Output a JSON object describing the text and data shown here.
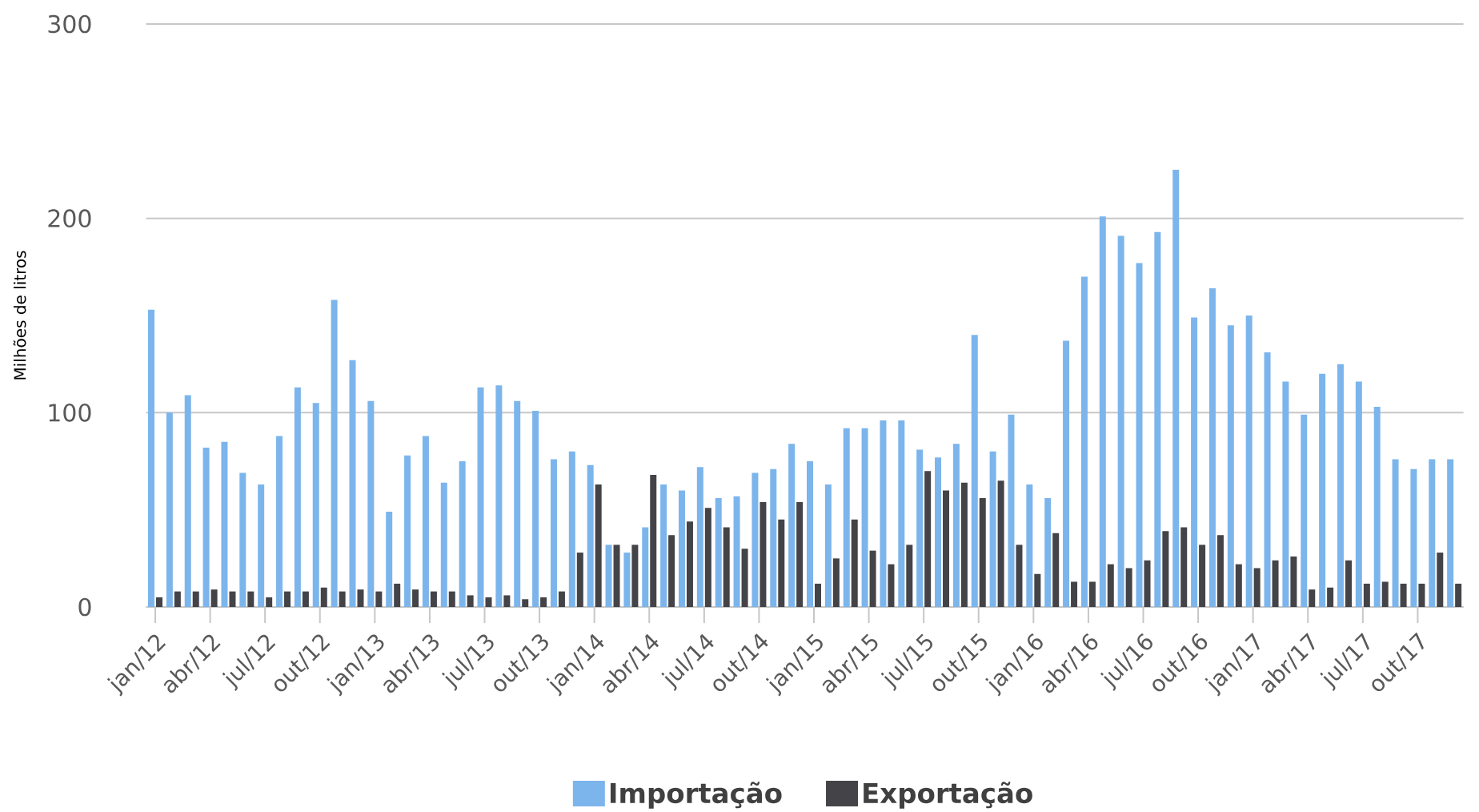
{
  "chart_data": {
    "type": "bar",
    "ylabel": "Milhões de litros",
    "categories": [
      "jan/12",
      null,
      null,
      "abr/12",
      null,
      null,
      "jul/12",
      null,
      null,
      "out/12",
      null,
      null,
      "jan/13",
      null,
      null,
      "abr/13",
      null,
      null,
      "jul/13",
      null,
      null,
      "out/13",
      null,
      null,
      "jan/14",
      null,
      null,
      "abr/14",
      null,
      null,
      "jul/14",
      null,
      null,
      "out/14",
      null,
      null,
      "jan/15",
      null,
      null,
      "abr/15",
      null,
      null,
      "jul/15",
      null,
      null,
      "out/15",
      null,
      null,
      "jan/16",
      null,
      null,
      "abr/16",
      null,
      null,
      "jul/16",
      null,
      null,
      "out/16",
      null,
      null,
      "jan/17",
      null,
      null,
      "abr/17",
      null,
      null,
      "jul/17",
      null,
      null,
      "out/17",
      null,
      null
    ],
    "series": [
      {
        "name": "Importação",
        "color": "#7cb5ec",
        "values": [
          153,
          100,
          109,
          82,
          85,
          69,
          63,
          88,
          113,
          105,
          158,
          127,
          106,
          49,
          78,
          88,
          64,
          75,
          113,
          114,
          106,
          101,
          76,
          80,
          73,
          32,
          28,
          41,
          63,
          60,
          72,
          56,
          57,
          69,
          71,
          84,
          75,
          63,
          92,
          92,
          96,
          96,
          81,
          77,
          84,
          140,
          80,
          99,
          63,
          56,
          137,
          170,
          201,
          191,
          177,
          193,
          225,
          149,
          164,
          145,
          150,
          131,
          116,
          99,
          120,
          125,
          116,
          103,
          76,
          71,
          76,
          76
        ]
      },
      {
        "name": "Exportação",
        "color": "#434348",
        "values": [
          5,
          8,
          8,
          9,
          8,
          8,
          5,
          8,
          8,
          10,
          8,
          9,
          8,
          12,
          9,
          8,
          8,
          6,
          5,
          6,
          4,
          5,
          8,
          28,
          63,
          32,
          32,
          68,
          37,
          44,
          51,
          41,
          30,
          54,
          45,
          54,
          12,
          25,
          45,
          29,
          22,
          32,
          70,
          60,
          64,
          56,
          65,
          32,
          17,
          38,
          13,
          13,
          22,
          20,
          24,
          39,
          41,
          32,
          37,
          22,
          20,
          24,
          26,
          9,
          10,
          24,
          12,
          13,
          12,
          12,
          28,
          12
        ]
      }
    ],
    "ylim": [
      0,
      300
    ],
    "yticks": [
      0,
      100,
      200,
      300
    ],
    "grid": "y",
    "legend": "bottom"
  }
}
